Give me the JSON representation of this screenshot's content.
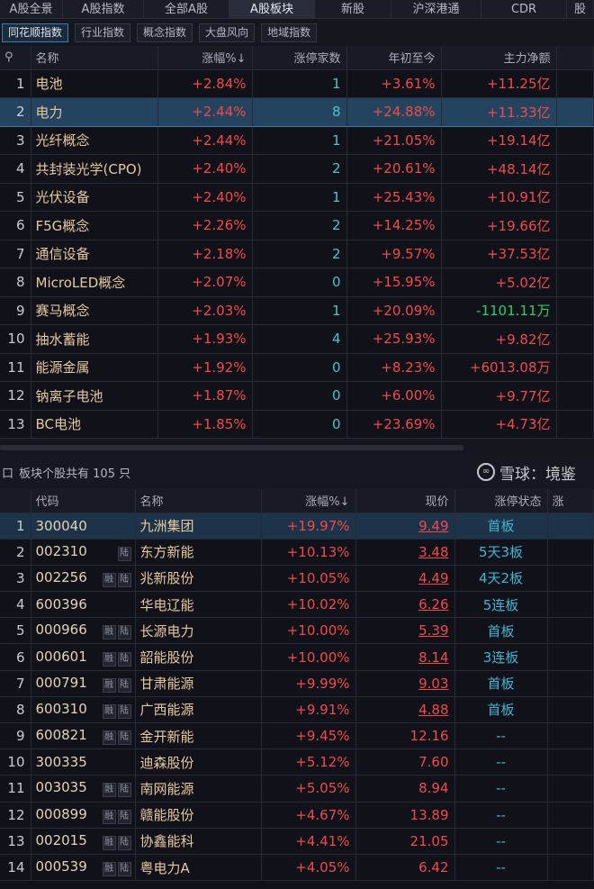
{
  "top_tabs": [
    "A股全景",
    "A股指数",
    "全部A股",
    "A股板块",
    "新股",
    "沪深港通",
    "CDR",
    "股"
  ],
  "active_top_tab": 3,
  "sub_tabs": [
    "同花顺指数",
    "行业指数",
    "概念指数",
    "大盘风向",
    "地域指数"
  ],
  "active_sub_tab": 0,
  "sector_table": {
    "search_icon": "search-icon",
    "headers": [
      "名称",
      "涨幅%↓",
      "涨停家数",
      "年初至今",
      "主力净额"
    ],
    "selected_row": 2,
    "rows": [
      {
        "idx": "1",
        "name": "电池",
        "change": "+2.84%",
        "limit_count": "1",
        "ytd": "+3.61%",
        "net": "+11.25亿",
        "net_dir": "up"
      },
      {
        "idx": "2",
        "name": "电力",
        "change": "+2.44%",
        "limit_count": "8",
        "ytd": "+24.88%",
        "net": "+11.33亿",
        "net_dir": "up"
      },
      {
        "idx": "3",
        "name": "光纤概念",
        "change": "+2.44%",
        "limit_count": "1",
        "ytd": "+21.05%",
        "net": "+19.14亿",
        "net_dir": "up"
      },
      {
        "idx": "4",
        "name": "共封装光学(CPO)",
        "change": "+2.40%",
        "limit_count": "2",
        "ytd": "+20.61%",
        "net": "+48.14亿",
        "net_dir": "up"
      },
      {
        "idx": "5",
        "name": "光伏设备",
        "change": "+2.40%",
        "limit_count": "1",
        "ytd": "+25.43%",
        "net": "+10.91亿",
        "net_dir": "up"
      },
      {
        "idx": "6",
        "name": "F5G概念",
        "change": "+2.26%",
        "limit_count": "2",
        "ytd": "+14.25%",
        "net": "+19.66亿",
        "net_dir": "up"
      },
      {
        "idx": "7",
        "name": "通信设备",
        "change": "+2.18%",
        "limit_count": "2",
        "ytd": "+9.57%",
        "net": "+37.53亿",
        "net_dir": "up"
      },
      {
        "idx": "8",
        "name": "MicroLED概念",
        "change": "+2.07%",
        "limit_count": "0",
        "ytd": "+15.95%",
        "net": "+5.02亿",
        "net_dir": "up"
      },
      {
        "idx": "9",
        "name": "赛马概念",
        "change": "+2.03%",
        "limit_count": "1",
        "ytd": "+20.09%",
        "net": "-1101.11万",
        "net_dir": "down"
      },
      {
        "idx": "10",
        "name": "抽水蓄能",
        "change": "+1.93%",
        "limit_count": "4",
        "ytd": "+25.93%",
        "net": "+9.82亿",
        "net_dir": "up"
      },
      {
        "idx": "11",
        "name": "能源金属",
        "change": "+1.92%",
        "limit_count": "0",
        "ytd": "+8.23%",
        "net": "+6013.08万",
        "net_dir": "up"
      },
      {
        "idx": "12",
        "name": "钠离子电池",
        "change": "+1.87%",
        "limit_count": "0",
        "ytd": "+6.00%",
        "net": "+9.77亿",
        "net_dir": "up"
      },
      {
        "idx": "13",
        "name": "BC电池",
        "change": "+1.85%",
        "limit_count": "0",
        "ytd": "+23.69%",
        "net": "+4.73亿",
        "net_dir": "up"
      }
    ]
  },
  "stock_info": {
    "prefix": "口",
    "text": "板块个股共有 105 只"
  },
  "stock_table": {
    "headers": [
      "代码",
      "名称",
      "涨幅%↓",
      "现价",
      "涨停状态",
      "涨"
    ],
    "rows": [
      {
        "idx": "1",
        "code": "300040",
        "badges": [],
        "name": "九洲集团",
        "change": "+19.97%",
        "price": "9.49",
        "limit": true,
        "status": "首板"
      },
      {
        "idx": "2",
        "code": "002310",
        "badges": [
          "陆"
        ],
        "name": "东方新能",
        "change": "+10.13%",
        "price": "3.48",
        "limit": true,
        "status": "5天3板"
      },
      {
        "idx": "3",
        "code": "002256",
        "badges": [
          "融",
          "陆"
        ],
        "name": "兆新股份",
        "change": "+10.05%",
        "price": "4.49",
        "limit": true,
        "status": "4天2板"
      },
      {
        "idx": "4",
        "code": "600396",
        "badges": [],
        "name": "华电辽能",
        "change": "+10.02%",
        "price": "6.26",
        "limit": true,
        "status": "5连板"
      },
      {
        "idx": "5",
        "code": "000966",
        "badges": [
          "融",
          "陆"
        ],
        "name": "长源电力",
        "change": "+10.00%",
        "price": "5.39",
        "limit": true,
        "status": "首板"
      },
      {
        "idx": "6",
        "code": "000601",
        "badges": [
          "融",
          "陆"
        ],
        "name": "韶能股份",
        "change": "+10.00%",
        "price": "8.14",
        "limit": true,
        "status": "3连板"
      },
      {
        "idx": "7",
        "code": "000791",
        "badges": [
          "融",
          "陆"
        ],
        "name": "甘肃能源",
        "change": "+9.99%",
        "price": "9.03",
        "limit": true,
        "status": "首板"
      },
      {
        "idx": "8",
        "code": "600310",
        "badges": [
          "融",
          "陆"
        ],
        "name": "广西能源",
        "change": "+9.91%",
        "price": "4.88",
        "limit": true,
        "status": "首板"
      },
      {
        "idx": "9",
        "code": "600821",
        "badges": [
          "融",
          "陆"
        ],
        "name": "金开新能",
        "change": "+9.45%",
        "price": "12.16",
        "limit": false,
        "status": "--"
      },
      {
        "idx": "10",
        "code": "300335",
        "badges": [],
        "name": "迪森股份",
        "change": "+5.12%",
        "price": "7.60",
        "limit": false,
        "status": "--"
      },
      {
        "idx": "11",
        "code": "003035",
        "badges": [
          "融",
          "陆"
        ],
        "name": "南网能源",
        "change": "+5.05%",
        "price": "8.94",
        "limit": false,
        "status": "--"
      },
      {
        "idx": "12",
        "code": "000899",
        "badges": [
          "融",
          "陆"
        ],
        "name": "赣能股份",
        "change": "+4.67%",
        "price": "13.89",
        "limit": false,
        "status": "--"
      },
      {
        "idx": "13",
        "code": "002015",
        "badges": [
          "融",
          "陆"
        ],
        "name": "协鑫能科",
        "change": "+4.41%",
        "price": "21.05",
        "limit": false,
        "status": "--"
      },
      {
        "idx": "14",
        "code": "000539",
        "badges": [
          "融",
          "陆"
        ],
        "name": "粤电力A",
        "change": "+4.05%",
        "price": "6.42",
        "limit": false,
        "status": "--"
      }
    ]
  },
  "watermark": {
    "text": "雪球：境鉴"
  },
  "colors": {
    "up": "#ef4b4b",
    "down": "#2ecc71",
    "accent": "#3fb6d6"
  }
}
